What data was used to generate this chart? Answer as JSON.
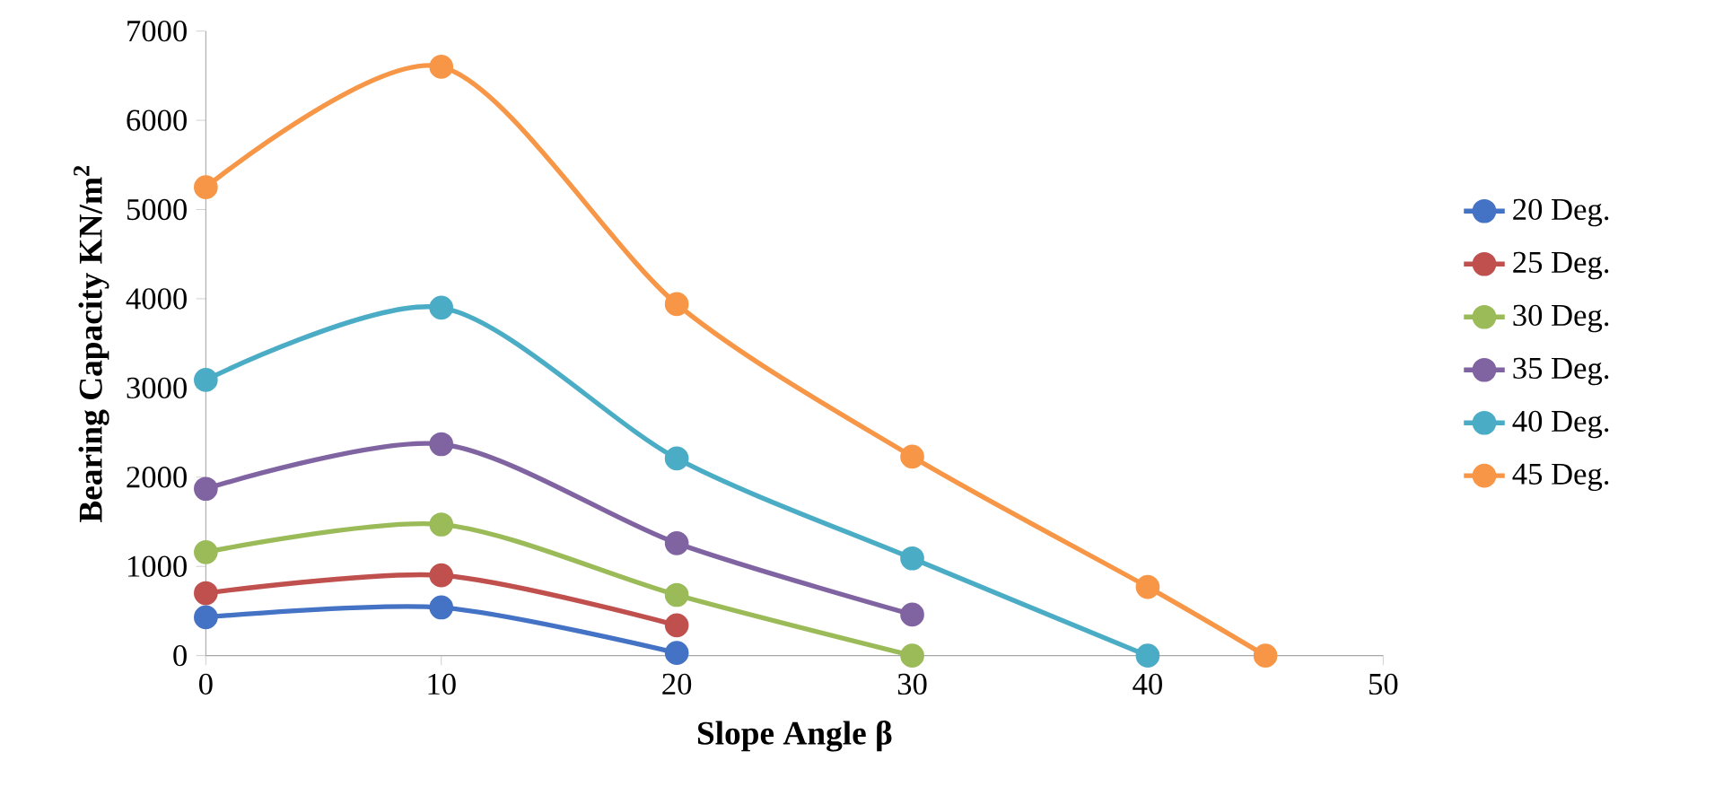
{
  "chart_data": {
    "type": "line",
    "xlabel": "Slope Angle β",
    "ylabel": "Bearing Capacity KN/m$^{2}$",
    "xlim": [
      0,
      50
    ],
    "xticks": [
      0,
      10,
      20,
      30,
      40,
      50
    ],
    "ylim": [
      0,
      7000
    ],
    "yticks": [
      0,
      1000,
      2000,
      3000,
      4000,
      5000,
      6000,
      7000
    ],
    "legend": "right",
    "marker": "circle",
    "line_style": "solid",
    "grid": false,
    "series": [
      {
        "name": "20 Deg.",
        "color": "#4472c4",
        "x": [
          0,
          10,
          20
        ],
        "values": [
          430,
          540,
          30
        ]
      },
      {
        "name": "25 Deg.",
        "color": "#c0504d",
        "x": [
          0,
          10,
          20
        ],
        "values": [
          700,
          900,
          340
        ]
      },
      {
        "name": "30 Deg.",
        "color": "#9bbb59",
        "x": [
          0,
          10,
          20,
          30
        ],
        "values": [
          1160,
          1470,
          680,
          0
        ]
      },
      {
        "name": "35 Deg.",
        "color": "#8064a2",
        "x": [
          0,
          10,
          20,
          30
        ],
        "values": [
          1870,
          2370,
          1260,
          460
        ]
      },
      {
        "name": "40 Deg.",
        "color": "#4bacc6",
        "x": [
          0,
          10,
          20,
          30,
          40
        ],
        "values": [
          3090,
          3900,
          2210,
          1090,
          0
        ]
      },
      {
        "name": "45 Deg.",
        "color": "#f79646",
        "x": [
          0,
          10,
          20,
          30,
          40,
          45
        ],
        "values": [
          5250,
          6600,
          3940,
          2230,
          770,
          0
        ]
      }
    ]
  }
}
